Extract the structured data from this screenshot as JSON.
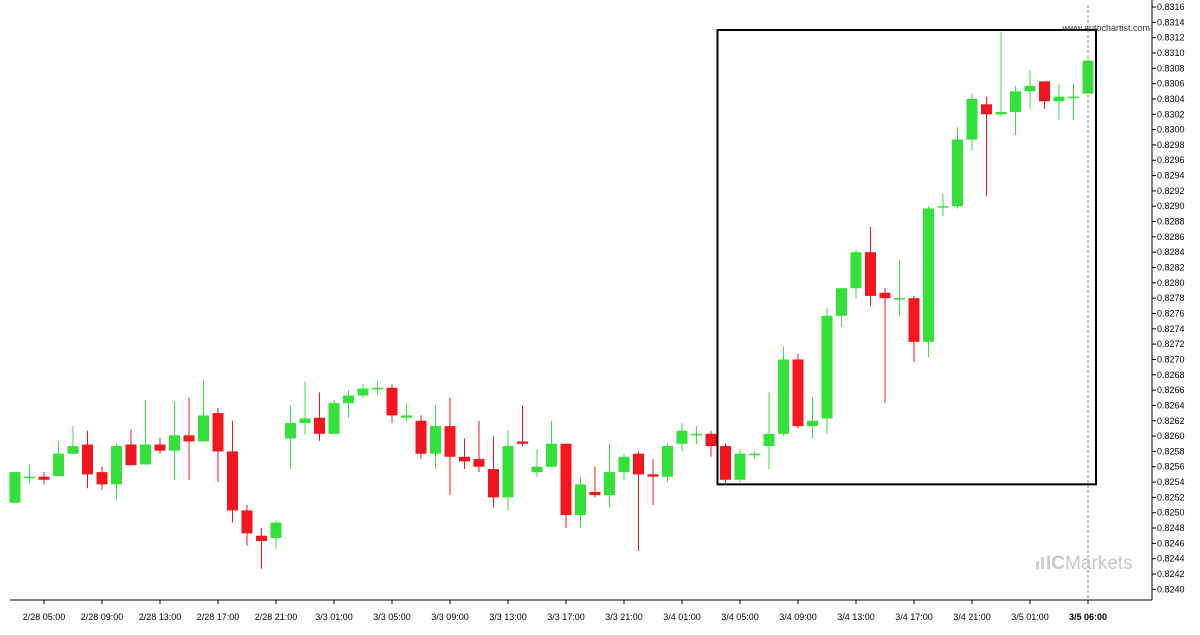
{
  "source_label": "www.autochartist.com",
  "brand": {
    "prefix": "IC",
    "suffix": "Markets",
    "color": "#c8c8c8"
  },
  "colors": {
    "up": "#33e13a",
    "down": "#f2171f",
    "frame": "#000000",
    "axis": "#000000",
    "cursor": "#8a8a8a"
  },
  "chart_data": {
    "type": "candlestick",
    "title": "",
    "xlabel": "",
    "ylabel": "",
    "ylim": [
      0.8239,
      0.8316
    ],
    "y_ticks": [
      "0.8316",
      "0.8314",
      "0.8312",
      "0.8310",
      "0.8308",
      "0.8306",
      "0.8304",
      "0.8302",
      "0.8300",
      "0.8298",
      "0.8296",
      "0.8294",
      "0.8292",
      "0.8290",
      "0.8288",
      "0.8286",
      "0.8284",
      "0.8282",
      "0.8280",
      "0.8278",
      "0.8276",
      "0.8274",
      "0.8272",
      "0.8270",
      "0.8268",
      "0.8266",
      "0.8264",
      "0.8262",
      "0.8260",
      "0.8258",
      "0.8256",
      "0.8254",
      "0.8252",
      "0.8250",
      "0.8248",
      "0.8246",
      "0.8244",
      "0.8242",
      "0.8240"
    ],
    "x_tick_labels": [
      {
        "index": 2,
        "label": "2/28 05:00"
      },
      {
        "index": 6,
        "label": "2/28 09:00"
      },
      {
        "index": 10,
        "label": "2/28 13:00"
      },
      {
        "index": 14,
        "label": "2/28 17:00"
      },
      {
        "index": 18,
        "label": "2/28 21:00"
      },
      {
        "index": 22,
        "label": "3/3 01:00"
      },
      {
        "index": 26,
        "label": "3/3 05:00"
      },
      {
        "index": 30,
        "label": "3/3 09:00"
      },
      {
        "index": 34,
        "label": "3/3 13:00"
      },
      {
        "index": 38,
        "label": "3/3 17:00"
      },
      {
        "index": 42,
        "label": "3/3 21:00"
      },
      {
        "index": 46,
        "label": "3/4 01:00"
      },
      {
        "index": 50,
        "label": "3/4 05:00"
      },
      {
        "index": 54,
        "label": "3/4 09:00"
      },
      {
        "index": 58,
        "label": "3/4 13:00"
      },
      {
        "index": 62,
        "label": "3/4 17:00"
      },
      {
        "index": 66,
        "label": "3/4 21:00"
      },
      {
        "index": 70,
        "label": "3/5 01:00"
      },
      {
        "index": 74,
        "label": "3/5 06:00",
        "bold": true
      }
    ],
    "candles": [
      {
        "o": 0.82513,
        "h": 0.82553,
        "l": 0.82513,
        "c": 0.82553
      },
      {
        "o": 0.82547,
        "h": 0.82563,
        "l": 0.82538,
        "c": 0.82547
      },
      {
        "o": 0.82547,
        "h": 0.82553,
        "l": 0.82537,
        "c": 0.82543
      },
      {
        "o": 0.82548,
        "h": 0.82593,
        "l": 0.82548,
        "c": 0.82577
      },
      {
        "o": 0.82577,
        "h": 0.82613,
        "l": 0.82577,
        "c": 0.82587
      },
      {
        "o": 0.82589,
        "h": 0.82607,
        "l": 0.82532,
        "c": 0.8255
      },
      {
        "o": 0.82553,
        "h": 0.8256,
        "l": 0.8253,
        "c": 0.82537
      },
      {
        "o": 0.82537,
        "h": 0.8259,
        "l": 0.82518,
        "c": 0.82587
      },
      {
        "o": 0.82589,
        "h": 0.82609,
        "l": 0.82563,
        "c": 0.82562
      },
      {
        "o": 0.82563,
        "h": 0.82647,
        "l": 0.82563,
        "c": 0.82589
      },
      {
        "o": 0.82589,
        "h": 0.82598,
        "l": 0.82577,
        "c": 0.82581
      },
      {
        "o": 0.82581,
        "h": 0.82645,
        "l": 0.82543,
        "c": 0.82601
      },
      {
        "o": 0.82601,
        "h": 0.8265,
        "l": 0.82543,
        "c": 0.82593
      },
      {
        "o": 0.82593,
        "h": 0.82674,
        "l": 0.82593,
        "c": 0.82627
      },
      {
        "o": 0.8263,
        "h": 0.82637,
        "l": 0.8254,
        "c": 0.8258
      },
      {
        "o": 0.8258,
        "h": 0.8262,
        "l": 0.82487,
        "c": 0.82503
      },
      {
        "o": 0.82503,
        "h": 0.8251,
        "l": 0.82457,
        "c": 0.82473
      },
      {
        "o": 0.8247,
        "h": 0.8248,
        "l": 0.82427,
        "c": 0.82463
      },
      {
        "o": 0.82467,
        "h": 0.8249,
        "l": 0.82453,
        "c": 0.82487
      },
      {
        "o": 0.82597,
        "h": 0.8264,
        "l": 0.82557,
        "c": 0.82617
      },
      {
        "o": 0.82617,
        "h": 0.82671,
        "l": 0.82602,
        "c": 0.82623
      },
      {
        "o": 0.82624,
        "h": 0.82657,
        "l": 0.82594,
        "c": 0.82603
      },
      {
        "o": 0.82603,
        "h": 0.82647,
        "l": 0.82603,
        "c": 0.82643
      },
      {
        "o": 0.82643,
        "h": 0.8266,
        "l": 0.82624,
        "c": 0.82653
      },
      {
        "o": 0.82653,
        "h": 0.82668,
        "l": 0.8265,
        "c": 0.82662
      },
      {
        "o": 0.82663,
        "h": 0.82671,
        "l": 0.82654,
        "c": 0.82663
      },
      {
        "o": 0.82663,
        "h": 0.82667,
        "l": 0.82617,
        "c": 0.82627
      },
      {
        "o": 0.82624,
        "h": 0.82643,
        "l": 0.8262,
        "c": 0.82627
      },
      {
        "o": 0.8262,
        "h": 0.82627,
        "l": 0.8257,
        "c": 0.82577
      },
      {
        "o": 0.82577,
        "h": 0.8264,
        "l": 0.82557,
        "c": 0.82613
      },
      {
        "o": 0.82613,
        "h": 0.8265,
        "l": 0.82523,
        "c": 0.82573
      },
      {
        "o": 0.82573,
        "h": 0.82597,
        "l": 0.82557,
        "c": 0.82567
      },
      {
        "o": 0.8257,
        "h": 0.8262,
        "l": 0.82553,
        "c": 0.8256
      },
      {
        "o": 0.82557,
        "h": 0.826,
        "l": 0.82507,
        "c": 0.8252
      },
      {
        "o": 0.8252,
        "h": 0.82607,
        "l": 0.82503,
        "c": 0.82587
      },
      {
        "o": 0.82593,
        "h": 0.8264,
        "l": 0.82587,
        "c": 0.8259
      },
      {
        "o": 0.82553,
        "h": 0.82583,
        "l": 0.82547,
        "c": 0.8256
      },
      {
        "o": 0.8256,
        "h": 0.8262,
        "l": 0.8256,
        "c": 0.8259
      },
      {
        "o": 0.8259,
        "h": 0.8259,
        "l": 0.8248,
        "c": 0.82497
      },
      {
        "o": 0.82497,
        "h": 0.82547,
        "l": 0.8248,
        "c": 0.82537
      },
      {
        "o": 0.82527,
        "h": 0.8256,
        "l": 0.8252,
        "c": 0.82523
      },
      {
        "o": 0.82523,
        "h": 0.8259,
        "l": 0.82507,
        "c": 0.82553
      },
      {
        "o": 0.82553,
        "h": 0.82577,
        "l": 0.82543,
        "c": 0.82573
      },
      {
        "o": 0.82577,
        "h": 0.8258,
        "l": 0.8245,
        "c": 0.8255
      },
      {
        "o": 0.8255,
        "h": 0.8257,
        "l": 0.8251,
        "c": 0.82547
      },
      {
        "o": 0.82547,
        "h": 0.8259,
        "l": 0.8254,
        "c": 0.82587
      },
      {
        "o": 0.8259,
        "h": 0.82617,
        "l": 0.8258,
        "c": 0.82607
      },
      {
        "o": 0.82603,
        "h": 0.82613,
        "l": 0.8259,
        "c": 0.82603
      },
      {
        "o": 0.82603,
        "h": 0.82607,
        "l": 0.82573,
        "c": 0.82587
      },
      {
        "o": 0.82587,
        "h": 0.8259,
        "l": 0.82537,
        "c": 0.82543
      },
      {
        "o": 0.82543,
        "h": 0.82583,
        "l": 0.8254,
        "c": 0.82577
      },
      {
        "o": 0.82577,
        "h": 0.8258,
        "l": 0.8257,
        "c": 0.82577
      },
      {
        "o": 0.82587,
        "h": 0.82657,
        "l": 0.82557,
        "c": 0.82603
      },
      {
        "o": 0.82603,
        "h": 0.82717,
        "l": 0.826,
        "c": 0.827
      },
      {
        "o": 0.827,
        "h": 0.82707,
        "l": 0.8261,
        "c": 0.82613
      },
      {
        "o": 0.82613,
        "h": 0.8265,
        "l": 0.82597,
        "c": 0.8262
      },
      {
        "o": 0.82623,
        "h": 0.82767,
        "l": 0.82603,
        "c": 0.82757
      },
      {
        "o": 0.82757,
        "h": 0.82793,
        "l": 0.82743,
        "c": 0.82793
      },
      {
        "o": 0.82793,
        "h": 0.82843,
        "l": 0.8278,
        "c": 0.8284
      },
      {
        "o": 0.8284,
        "h": 0.82873,
        "l": 0.8277,
        "c": 0.82783
      },
      {
        "o": 0.82787,
        "h": 0.82793,
        "l": 0.82643,
        "c": 0.8278
      },
      {
        "o": 0.8278,
        "h": 0.8283,
        "l": 0.82757,
        "c": 0.8278
      },
      {
        "o": 0.8278,
        "h": 0.82783,
        "l": 0.82697,
        "c": 0.82723
      },
      {
        "o": 0.82723,
        "h": 0.829,
        "l": 0.82703,
        "c": 0.82897
      },
      {
        "o": 0.829,
        "h": 0.82917,
        "l": 0.82887,
        "c": 0.829
      },
      {
        "o": 0.829,
        "h": 0.83003,
        "l": 0.82897,
        "c": 0.82987
      },
      {
        "o": 0.82987,
        "h": 0.83047,
        "l": 0.82973,
        "c": 0.8304
      },
      {
        "o": 0.83033,
        "h": 0.83043,
        "l": 0.82913,
        "c": 0.8302
      },
      {
        "o": 0.8302,
        "h": 0.83127,
        "l": 0.83017,
        "c": 0.83023
      },
      {
        "o": 0.83023,
        "h": 0.83057,
        "l": 0.82993,
        "c": 0.8305
      },
      {
        "o": 0.8305,
        "h": 0.83077,
        "l": 0.83027,
        "c": 0.83057
      },
      {
        "o": 0.83063,
        "h": 0.83063,
        "l": 0.83027,
        "c": 0.83037
      },
      {
        "o": 0.83037,
        "h": 0.8306,
        "l": 0.83013,
        "c": 0.83043
      },
      {
        "o": 0.83043,
        "h": 0.8306,
        "l": 0.83013,
        "c": 0.83043
      },
      {
        "o": 0.83047,
        "h": 0.83093,
        "l": 0.83047,
        "c": 0.8309
      }
    ],
    "highlight_box": {
      "start_index": 49,
      "end_index": 74,
      "y_top": 0.8313,
      "y_bottom": 0.82537
    },
    "cursor_index": 74,
    "grid": false,
    "legend": "none"
  }
}
